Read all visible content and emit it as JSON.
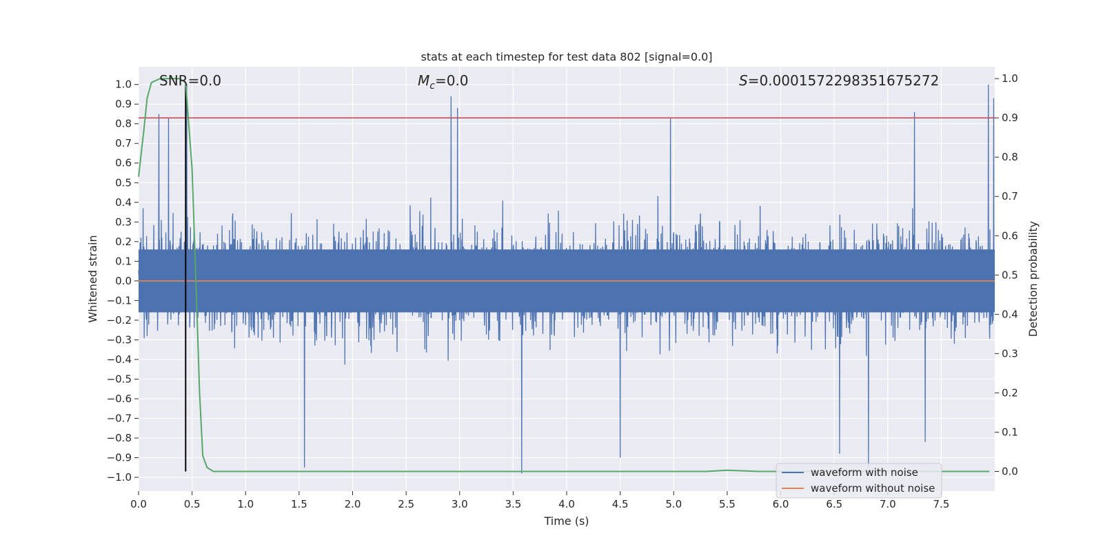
{
  "chart_data": {
    "type": "line",
    "title": "stats at each timestep for test data 802 [signal=0.0]",
    "xlabel": "Time (s)",
    "ylabel_left": "Whitened strain",
    "ylabel_right": "Detection probability",
    "xlim": [
      0.0,
      8.0
    ],
    "ylim_left": [
      -1.07,
      1.09
    ],
    "ylim_right": [
      -0.05,
      1.03
    ],
    "xticks": [
      0.0,
      0.5,
      1.0,
      1.5,
      2.0,
      2.5,
      3.0,
      3.5,
      4.0,
      4.5,
      5.0,
      5.5,
      6.0,
      6.5,
      7.0,
      7.5
    ],
    "xtick_labels": [
      "0.0",
      "0.5",
      "1.0",
      "1.5",
      "2.0",
      "2.5",
      "3.0",
      "3.5",
      "4.0",
      "4.5",
      "5.0",
      "5.5",
      "6.0",
      "6.5",
      "7.0",
      "7.5"
    ],
    "yticks_left": [
      1.0,
      0.9,
      0.8,
      0.7,
      0.6,
      0.5,
      0.4,
      0.3,
      0.2,
      0.1,
      0.0,
      -0.1,
      -0.2,
      -0.3,
      -0.4,
      -0.5,
      -0.6,
      -0.7,
      -0.8,
      -0.9,
      -1.0
    ],
    "ytick_labels_left": [
      "1.0",
      "0.9",
      "0.8",
      "0.7",
      "0.6",
      "0.5",
      "0.4",
      "0.3",
      "0.2",
      "0.1",
      "0.0",
      "−0.1",
      "−0.2",
      "−0.3",
      "−0.4",
      "−0.5",
      "−0.6",
      "−0.7",
      "−0.8",
      "−0.9",
      "−1.0"
    ],
    "yticks_right": [
      1.0,
      0.9,
      0.8,
      0.7,
      0.6,
      0.5,
      0.4,
      0.3,
      0.2,
      0.1,
      0.0
    ],
    "ytick_labels_right": [
      "1.0",
      "0.9",
      "0.8",
      "0.7",
      "0.6",
      "0.5",
      "0.4",
      "0.3",
      "0.2",
      "0.1",
      "0.0"
    ],
    "grid": true,
    "background": "#eaeaf2",
    "annotations": [
      {
        "label": "SNR",
        "value": "=0.0"
      },
      {
        "label": "M",
        "sub": "c",
        "value": "=0.0"
      },
      {
        "label": "S",
        "value": "=0.0001572298351675272"
      }
    ],
    "threshold": {
      "axis": "right",
      "value": 0.9,
      "color": "#c44e52"
    },
    "marker_time": 0.44,
    "legend": {
      "position": "lower-right",
      "entries": [
        {
          "label": "waveform with noise",
          "color": "#4c72b0"
        },
        {
          "label": "waveform without noise",
          "color": "#dd8452"
        }
      ]
    },
    "series": [
      {
        "name": "waveform with noise",
        "axis": "left",
        "color": "#4c72b0",
        "kind": "dense-noise",
        "duration_s": 8.0,
        "typical_band": [
          -0.45,
          0.5
        ],
        "notable_peaks": [
          {
            "t": 0.19,
            "v": 0.85
          },
          {
            "t": 0.28,
            "v": 0.83
          },
          {
            "t": 0.45,
            "v": 1.0
          },
          {
            "t": 2.92,
            "v": 0.94
          },
          {
            "t": 2.98,
            "v": 0.88
          },
          {
            "t": 4.97,
            "v": 0.83
          },
          {
            "t": 7.25,
            "v": 0.86
          },
          {
            "t": 7.94,
            "v": 1.0
          },
          {
            "t": 7.99,
            "v": 0.93
          }
        ],
        "notable_troughs": [
          {
            "t": 1.55,
            "v": -0.95
          },
          {
            "t": 3.58,
            "v": -0.98
          },
          {
            "t": 4.5,
            "v": -0.9
          },
          {
            "t": 6.82,
            "v": -0.95
          },
          {
            "t": 6.55,
            "v": -0.88
          },
          {
            "t": 7.35,
            "v": -0.82
          }
        ]
      },
      {
        "name": "waveform without noise",
        "axis": "left",
        "color": "#dd8452",
        "x": [
          0.0,
          8.0
        ],
        "y": [
          0.0,
          0.0
        ]
      },
      {
        "name": "detection probability",
        "axis": "right",
        "color": "#55a868",
        "x": [
          0.0,
          0.05,
          0.08,
          0.12,
          0.2,
          0.3,
          0.38,
          0.44,
          0.5,
          0.54,
          0.57,
          0.6,
          0.64,
          0.7,
          1.0,
          5.0,
          5.3,
          5.5,
          5.8,
          6.0,
          7.95
        ],
        "y": [
          0.75,
          0.87,
          0.95,
          0.99,
          1.0,
          1.0,
          1.0,
          0.99,
          0.77,
          0.45,
          0.2,
          0.04,
          0.01,
          0.0,
          0.0,
          0.0,
          0.0,
          0.003,
          0.0,
          0.0,
          0.0
        ]
      }
    ]
  }
}
